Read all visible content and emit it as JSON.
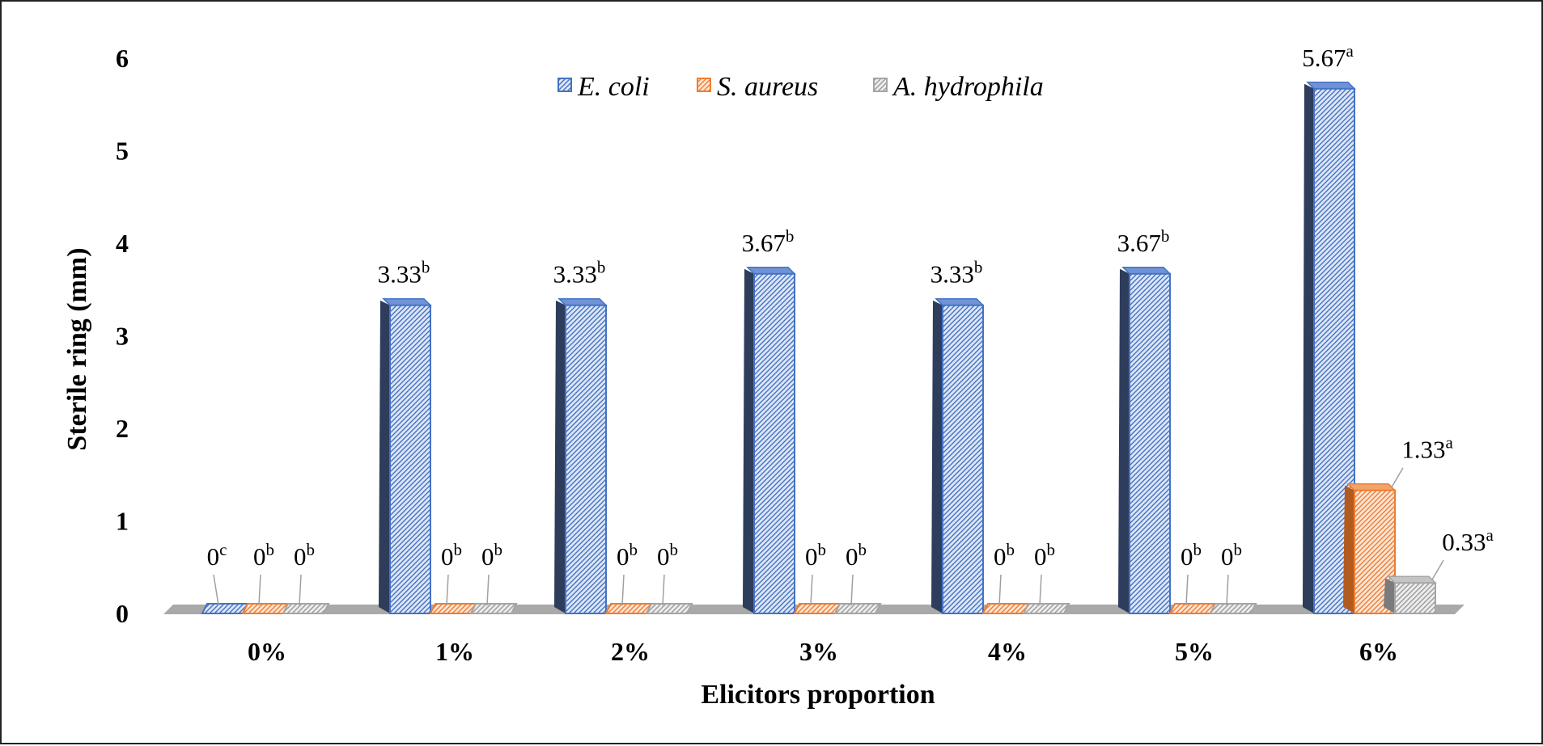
{
  "chart_data": {
    "type": "bar",
    "xlabel": "Elicitors proportion",
    "ylabel": "Sterile ring (mm)",
    "ylim": [
      0,
      6
    ],
    "yticks": [
      "0",
      "1",
      "2",
      "3",
      "4",
      "5",
      "6"
    ],
    "categories": [
      "0%",
      "1%",
      "2%",
      "3%",
      "4%",
      "5%",
      "6%"
    ],
    "legend_position": "top",
    "grid": false,
    "series": [
      {
        "name": "E. coli",
        "color": "#4472C4",
        "values": [
          0,
          3.33,
          3.33,
          3.67,
          3.33,
          3.67,
          5.67
        ],
        "labels": [
          "0",
          "3.33",
          "3.33",
          "3.67",
          "3.33",
          "3.67",
          "5.67"
        ],
        "letters": [
          "c",
          "b",
          "b",
          "b",
          "b",
          "b",
          "a"
        ]
      },
      {
        "name": "S. aureus",
        "color": "#ED7D31",
        "values": [
          0,
          0,
          0,
          0,
          0,
          0,
          1.33
        ],
        "labels": [
          "0",
          "0",
          "0",
          "0",
          "0",
          "0",
          "1.33"
        ],
        "letters": [
          "b",
          "b",
          "b",
          "b",
          "b",
          "b",
          "a"
        ]
      },
      {
        "name": "A. hydrophila",
        "color": "#A5A5A5",
        "values": [
          0,
          0,
          0,
          0,
          0,
          0,
          0.33
        ],
        "labels": [
          "0",
          "0",
          "0",
          "0",
          "0",
          "0",
          "0.33"
        ],
        "letters": [
          "b",
          "b",
          "b",
          "b",
          "b",
          "b",
          "a"
        ]
      }
    ]
  }
}
